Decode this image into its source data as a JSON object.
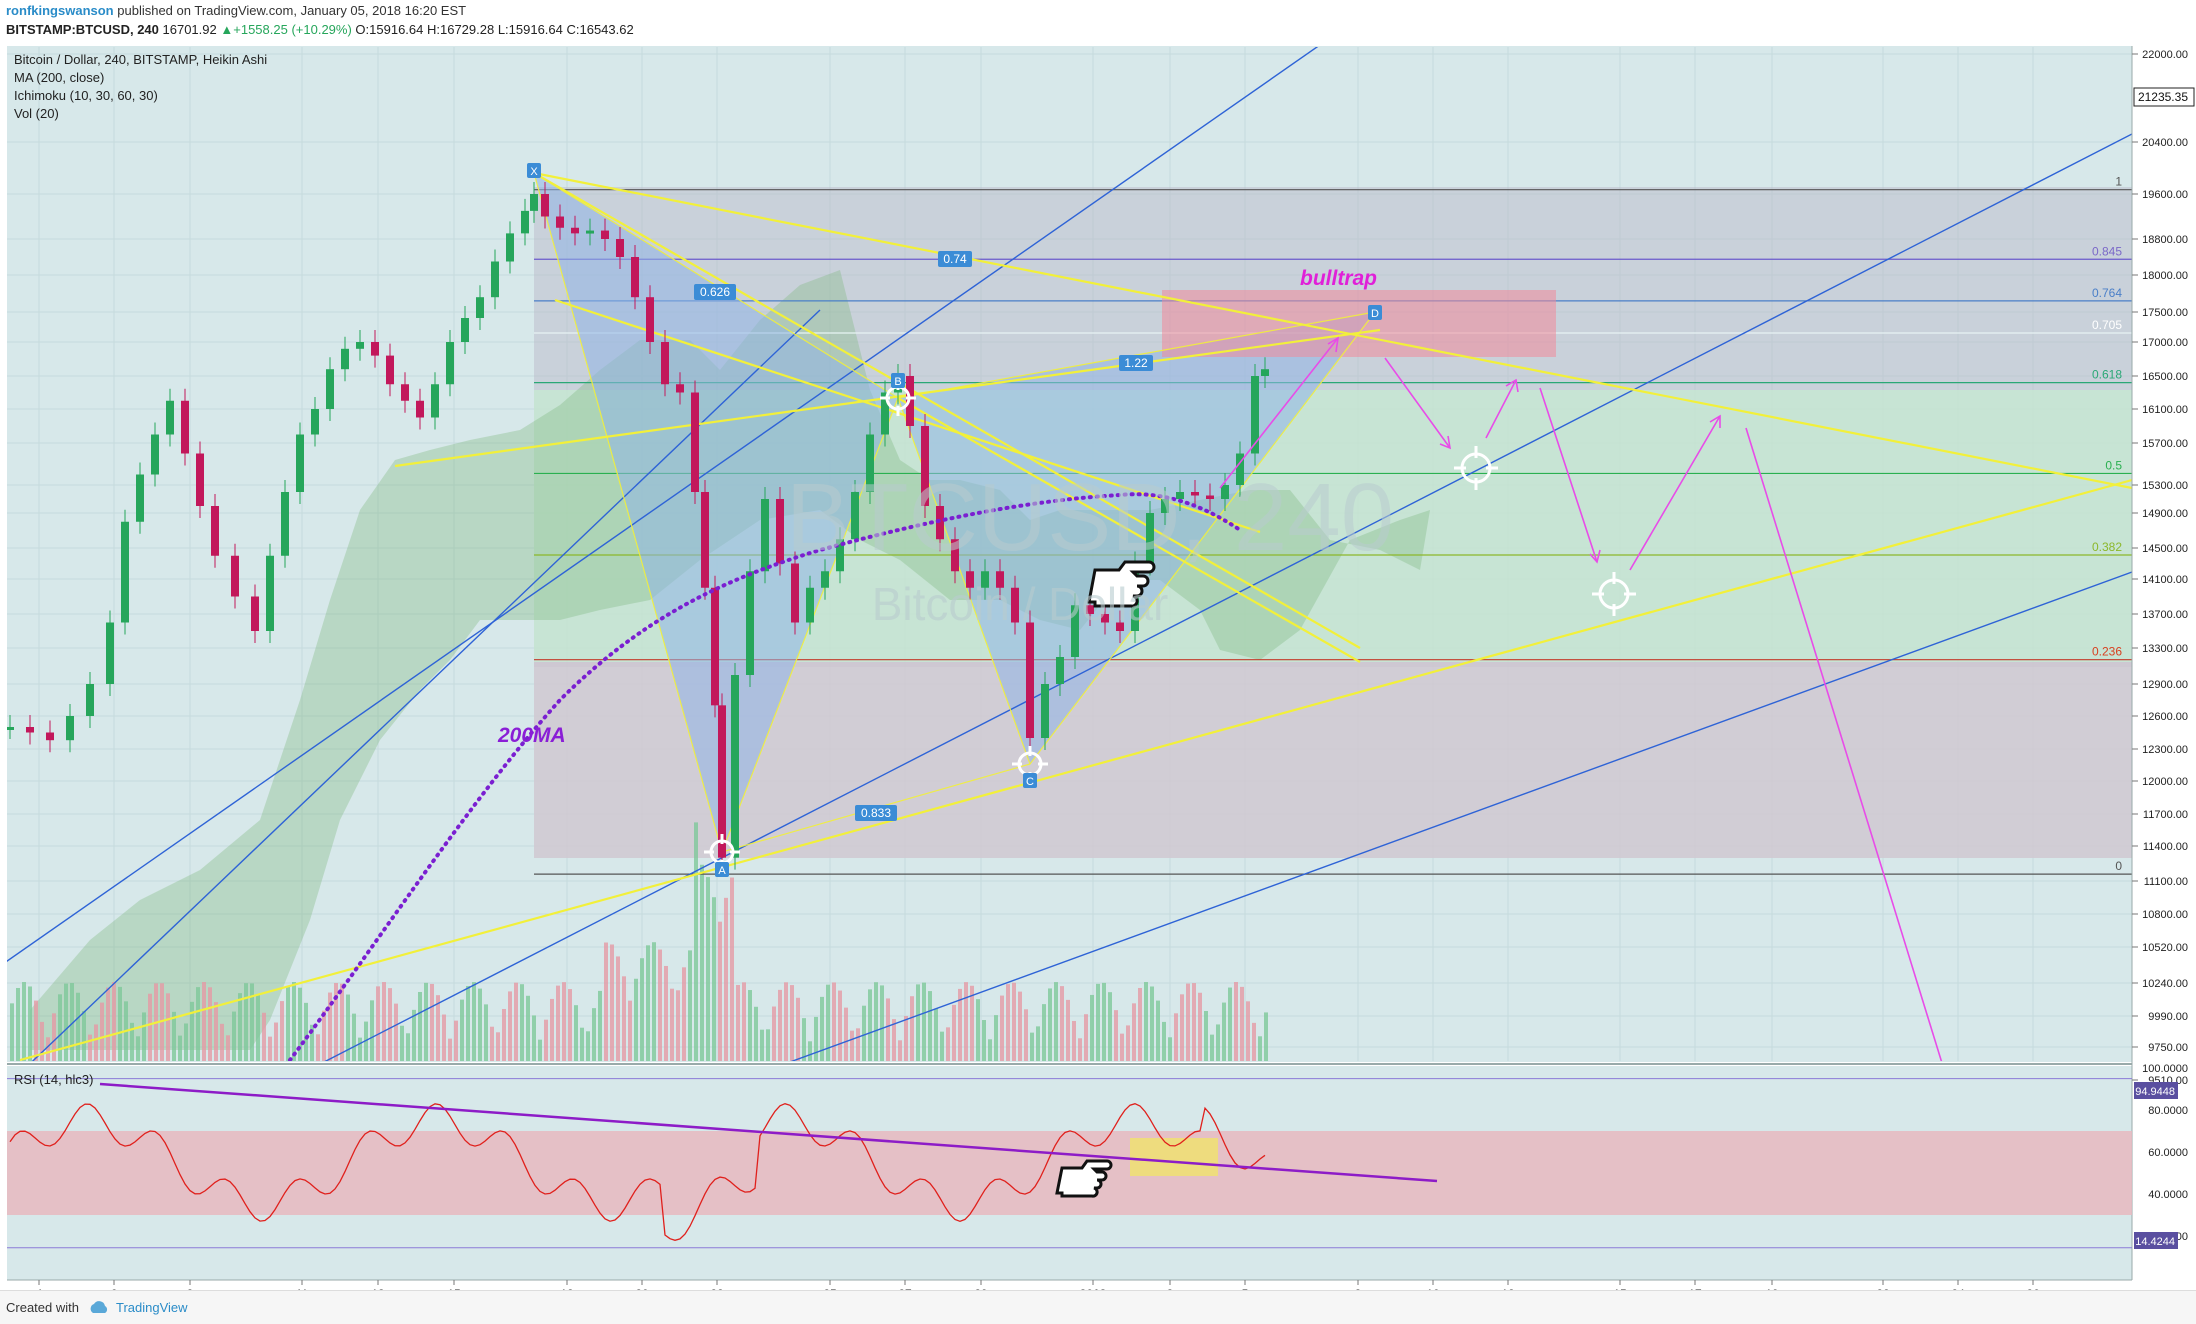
{
  "header": {
    "author": "ronfkingswanson",
    "published": "published on TradingView.com, January 05, 2018 16:20 EST",
    "symbol": "BITSTAMP:BTCUSD, 240",
    "price": "16701.92",
    "change": "+1558.25 (+10.29%)",
    "ohlc": "O:15916.64 H:16729.28 L:15916.64 C:16543.62"
  },
  "legend": {
    "title": "Bitcoin / Dollar, 240, BITSTAMP, Heikin Ashi",
    "ma": "MA (200, close)",
    "ichimoku": "Ichimoku (10, 30, 60, 30)",
    "vol": "Vol (20)"
  },
  "watermark": {
    "symbol": "BTCUSD, 240",
    "name": "Bitcoin / Dollar"
  },
  "rsi_label": "RSI (14, hlc3)",
  "footer": {
    "created": "Created with",
    "brand": "TradingView"
  },
  "colors": {
    "background": "#d7e8ea",
    "bull": "#26a65b",
    "bear": "#c2185b",
    "fib_zone_grey": "#b8b6c8",
    "fib_zone_green": "#c6ead1",
    "pattern_fill": "#8fb5e5",
    "trend_yellow": "#f2f03a",
    "trend_blue": "#2e63d6",
    "projection_magenta": "#e84ce8",
    "ma_purple": "#7a1fd1",
    "rsi_line": "#e0201c",
    "rsi_trend": "#8d1cc7"
  },
  "annotations": {
    "bulltrap": "bulltrap",
    "ma200": "200MA",
    "point_labels": [
      "X",
      "A",
      "B",
      "C",
      "D"
    ],
    "ratio_labels": [
      "0.626",
      "0.74",
      "1.22",
      "0.833"
    ]
  },
  "chart_data": [
    {
      "type": "candlestick",
      "title": "Bitcoin / Dollar, 240, BITSTAMP, Heikin Ashi",
      "x_ticks": [
        "4",
        "6",
        "8",
        "11",
        "13",
        "15",
        "18",
        "20",
        "22",
        "25",
        "27",
        "29",
        "2018",
        "3",
        "5",
        "8",
        "10",
        "12",
        "15",
        "17",
        "19",
        "22",
        "24",
        "26"
      ],
      "y_ticks": [
        "22000.00",
        "20400.00",
        "19600.00",
        "18800.00",
        "18000.00",
        "17500.00",
        "17000.00",
        "16500.00",
        "16100.00",
        "15700.00",
        "15300.00",
        "14900.00",
        "14500.00",
        "14100.00",
        "13700.00",
        "13300.00",
        "12900.00",
        "12600.00",
        "12300.00",
        "12000.00",
        "11700.00",
        "11400.00",
        "11100.00",
        "10800.00",
        "10520.00",
        "10240.00",
        "9990.00",
        "9750.00",
        "9510.00"
      ],
      "current_price_label": "21235.35",
      "ylim": [
        9400,
        22200
      ],
      "key_points": [
        {
          "label": "X",
          "date": "Dec 17",
          "price": 19666
        },
        {
          "label": "A",
          "date": "Dec 22",
          "price": 11159
        },
        {
          "label": "B",
          "date": "Dec 27",
          "price": 16500
        },
        {
          "label": "C",
          "date": "Dec 31",
          "price": 12100
        },
        {
          "label": "D",
          "date": "Jan 8",
          "price": 17600
        }
      ],
      "fib_levels": [
        {
          "ratio": "1",
          "price": 19666
        },
        {
          "ratio": "0.845",
          "price": 18350
        },
        {
          "ratio": "0.764",
          "price": 17650
        },
        {
          "ratio": "0.705",
          "price": 17150
        },
        {
          "ratio": "0.618",
          "price": 16420
        },
        {
          "ratio": "0.5",
          "price": 15410
        },
        {
          "ratio": "0.382",
          "price": 14410
        },
        {
          "ratio": "0.236",
          "price": 13170
        },
        {
          "ratio": "0",
          "price": 11159
        }
      ],
      "series": [
        {
          "name": "MA (200, close)"
        },
        {
          "name": "Ichimoku (10, 30, 60, 30)"
        },
        {
          "name": "Vol (20)"
        }
      ]
    },
    {
      "type": "line",
      "title": "RSI (14, hlc3)",
      "y_ticks": [
        "100.0000",
        "80.0000",
        "60.0000",
        "40.0000",
        "20.0000"
      ],
      "labels": [
        "94.9448",
        "14.4244"
      ],
      "ylim": [
        0,
        100
      ],
      "bands": [
        30,
        70
      ]
    }
  ]
}
